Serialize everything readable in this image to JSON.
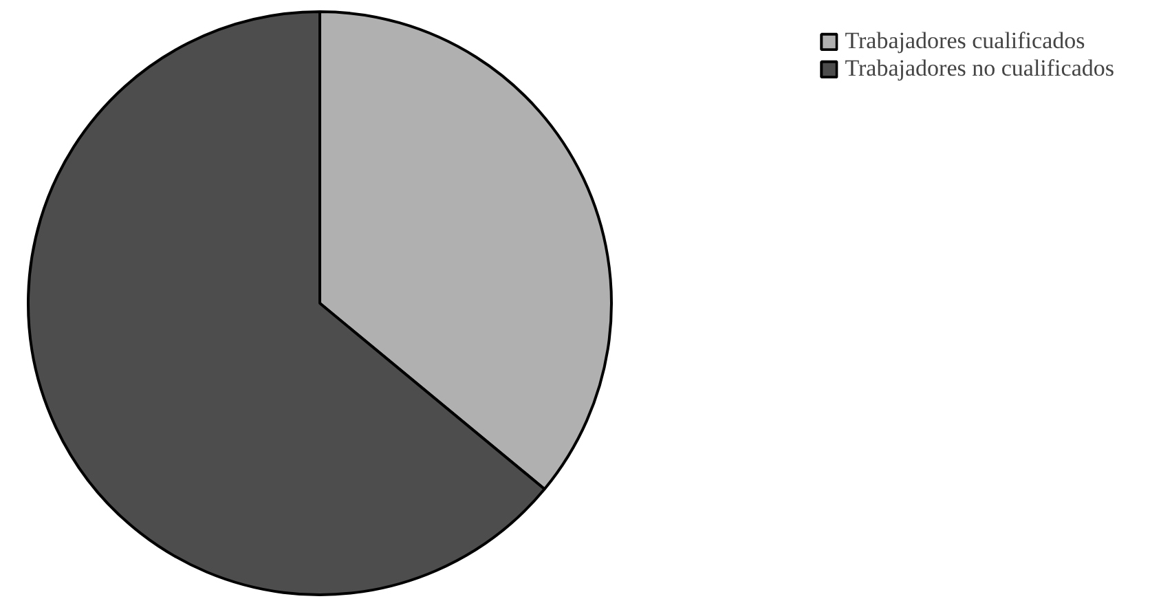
{
  "chart_data": {
    "type": "pie",
    "categories": [
      "Trabajadores cualificados",
      "Trabajadores no cualificados"
    ],
    "values": [
      36,
      64
    ],
    "colors": [
      "#b0b0b0",
      "#4d4d4d"
    ],
    "legend": "top right"
  }
}
